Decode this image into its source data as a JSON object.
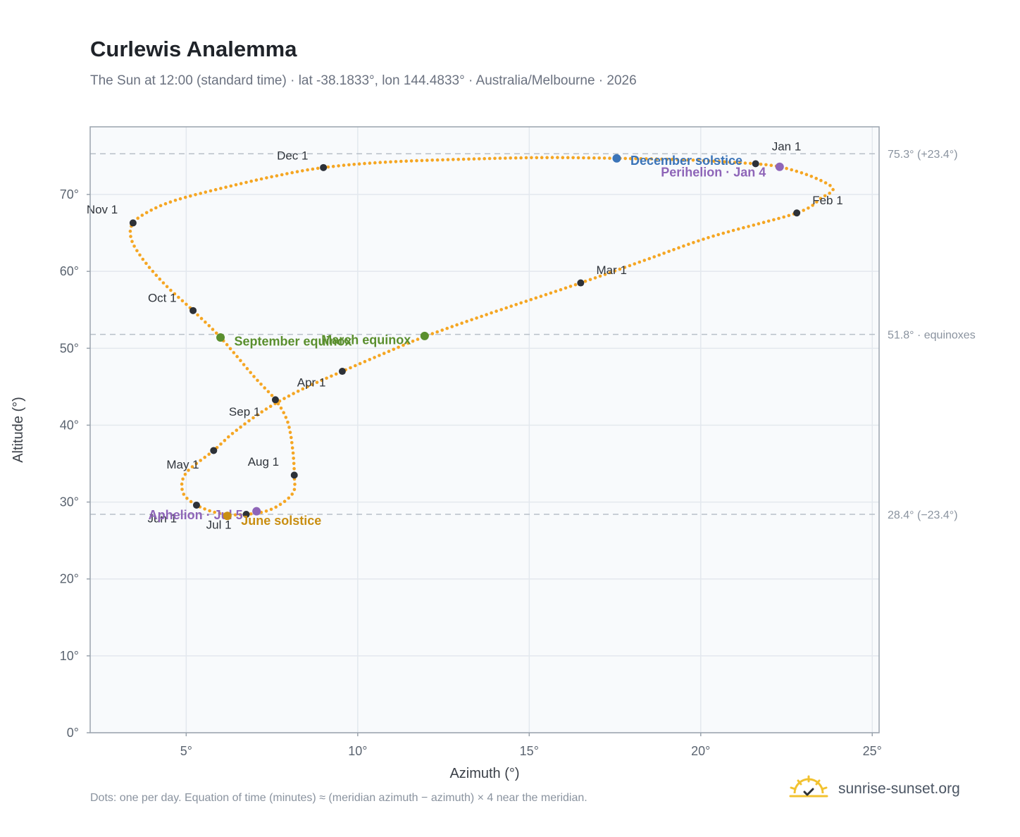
{
  "header": {
    "title": "Curlewis Analemma",
    "subtitle": "The Sun at 12:00 (standard time) · lat -38.1833°, lon 144.4833° · Australia/Melbourne · 2026"
  },
  "footer": {
    "note": "Dots: one per day. Equation of time (minutes) ≈ (meridian azimuth − azimuth) × 4 near the meridian.",
    "brand": "sunrise-sunset.org",
    "brand_icon": "sun-icon"
  },
  "colors": {
    "curve": "#f5a623",
    "month_dot": "#2d3138",
    "december_solstice": "#3b74b8",
    "june_solstice": "#c98e12",
    "equinox": "#5a8f2e",
    "apsis": "#8e65b8",
    "plot_bg": "#f8fafc",
    "grid": "#e3e8ee",
    "frame": "#9aa3ad"
  },
  "chart_data": {
    "type": "scatter",
    "xlabel": "Azimuth (°)",
    "ylabel": "Altitude (°)",
    "xlim": [
      2.2,
      25.2
    ],
    "ylim": [
      0,
      78.8
    ],
    "xticks": [
      5,
      10,
      15,
      20,
      25
    ],
    "xtick_labels": [
      "5°",
      "10°",
      "15°",
      "20°",
      "25°"
    ],
    "yticks": [
      0,
      10,
      20,
      30,
      40,
      50,
      60,
      70
    ],
    "ytick_labels": [
      "0°",
      "10°",
      "20°",
      "30°",
      "40°",
      "50°",
      "60°",
      "70°"
    ],
    "grid": true,
    "reference_lines": [
      {
        "y": 75.3,
        "label": "75.3° (+23.4°)"
      },
      {
        "y": 51.8,
        "label": "51.8° · equinoxes"
      },
      {
        "y": 28.4,
        "label": "28.4° (−23.4°)"
      }
    ],
    "month_points": [
      {
        "label": "Jan 1",
        "x": 21.6,
        "y": 74.0,
        "lx": 0.9,
        "ly": 2.2
      },
      {
        "label": "Feb 1",
        "x": 22.8,
        "y": 67.6,
        "lx": 0.9,
        "ly": 1.6
      },
      {
        "label": "Mar 1",
        "x": 16.5,
        "y": 58.5,
        "lx": 0.9,
        "ly": 1.6
      },
      {
        "label": "Apr 1",
        "x": 9.55,
        "y": 47.0,
        "lx": -0.9,
        "ly": -1.5
      },
      {
        "label": "May 1",
        "x": 5.8,
        "y": 36.7,
        "lx": -0.9,
        "ly": -1.9
      },
      {
        "label": "Jun 1",
        "x": 5.3,
        "y": 29.6,
        "lx": -1.0,
        "ly": -1.8
      },
      {
        "label": "Jul 1",
        "x": 6.75,
        "y": 28.4,
        "lx": -0.8,
        "ly": -1.4
      },
      {
        "label": "Aug 1",
        "x": 8.15,
        "y": 33.5,
        "lx": -0.9,
        "ly": 1.7
      },
      {
        "label": "Sep 1",
        "x": 7.6,
        "y": 43.3,
        "lx": -0.9,
        "ly": -1.6
      },
      {
        "label": "Oct 1",
        "x": 5.2,
        "y": 54.9,
        "lx": -0.9,
        "ly": 1.6
      },
      {
        "label": "Nov 1",
        "x": 3.45,
        "y": 66.3,
        "lx": -0.9,
        "ly": 1.7
      },
      {
        "label": "Dec 1",
        "x": 9.0,
        "y": 73.5,
        "lx": -0.9,
        "ly": 1.5
      }
    ],
    "events": [
      {
        "label": "December solstice",
        "x": 17.55,
        "y": 74.7,
        "color_key": "december_solstice",
        "anchor": "start",
        "lx": 0.4,
        "ly": -0.3
      },
      {
        "label": "Perihelion · Jan 4",
        "x": 22.3,
        "y": 73.6,
        "color_key": "apsis",
        "anchor": "end",
        "lx": -0.4,
        "ly": -0.7
      },
      {
        "label": "March equinox",
        "x": 11.95,
        "y": 51.6,
        "color_key": "equinox",
        "anchor": "end",
        "lx": -0.4,
        "ly": -0.5
      },
      {
        "label": "September equinox",
        "x": 6.0,
        "y": 51.4,
        "color_key": "equinox",
        "anchor": "start",
        "lx": 0.4,
        "ly": -0.5
      },
      {
        "label": "Aphelion · Jul 5",
        "x": 7.05,
        "y": 28.8,
        "color_key": "apsis",
        "anchor": "end",
        "lx": -0.4,
        "ly": -0.5
      },
      {
        "label": "June solstice",
        "x": 6.2,
        "y": 28.2,
        "color_key": "june_solstice",
        "anchor": "start",
        "lx": 0.4,
        "ly": -0.6
      }
    ],
    "curve_keypoints": [
      [
        21.6,
        74.0
      ],
      [
        22.3,
        73.6
      ],
      [
        23.2,
        72.4
      ],
      [
        23.85,
        70.8
      ],
      [
        23.5,
        69.5
      ],
      [
        22.8,
        67.6
      ],
      [
        20.3,
        64.5
      ],
      [
        18.4,
        61.5
      ],
      [
        16.5,
        58.5
      ],
      [
        13.9,
        54.6
      ],
      [
        12.0,
        51.6
      ],
      [
        10.7,
        49.2
      ],
      [
        9.55,
        47.0
      ],
      [
        8.3,
        44.5
      ],
      [
        7.3,
        42.0
      ],
      [
        6.4,
        39.1
      ],
      [
        5.8,
        36.7
      ],
      [
        5.0,
        33.8
      ],
      [
        4.9,
        31.3
      ],
      [
        5.3,
        29.6
      ],
      [
        6.0,
        28.5
      ],
      [
        6.75,
        28.4
      ],
      [
        7.5,
        29.1
      ],
      [
        8.1,
        31.1
      ],
      [
        8.15,
        33.5
      ],
      [
        8.1,
        37.0
      ],
      [
        7.95,
        40.5
      ],
      [
        7.6,
        43.3
      ],
      [
        7.0,
        46.2
      ],
      [
        6.0,
        51.4
      ],
      [
        5.2,
        54.9
      ],
      [
        4.4,
        58.2
      ],
      [
        3.75,
        61.5
      ],
      [
        3.4,
        64.2
      ],
      [
        3.45,
        66.3
      ],
      [
        4.0,
        68.0
      ],
      [
        4.8,
        69.4
      ],
      [
        6.3,
        71.1
      ],
      [
        7.6,
        72.4
      ],
      [
        9.0,
        73.5
      ],
      [
        10.8,
        74.2
      ],
      [
        13.2,
        74.6
      ],
      [
        15.5,
        74.8
      ],
      [
        17.55,
        74.7
      ],
      [
        19.6,
        74.5
      ],
      [
        21.6,
        74.0
      ]
    ]
  }
}
